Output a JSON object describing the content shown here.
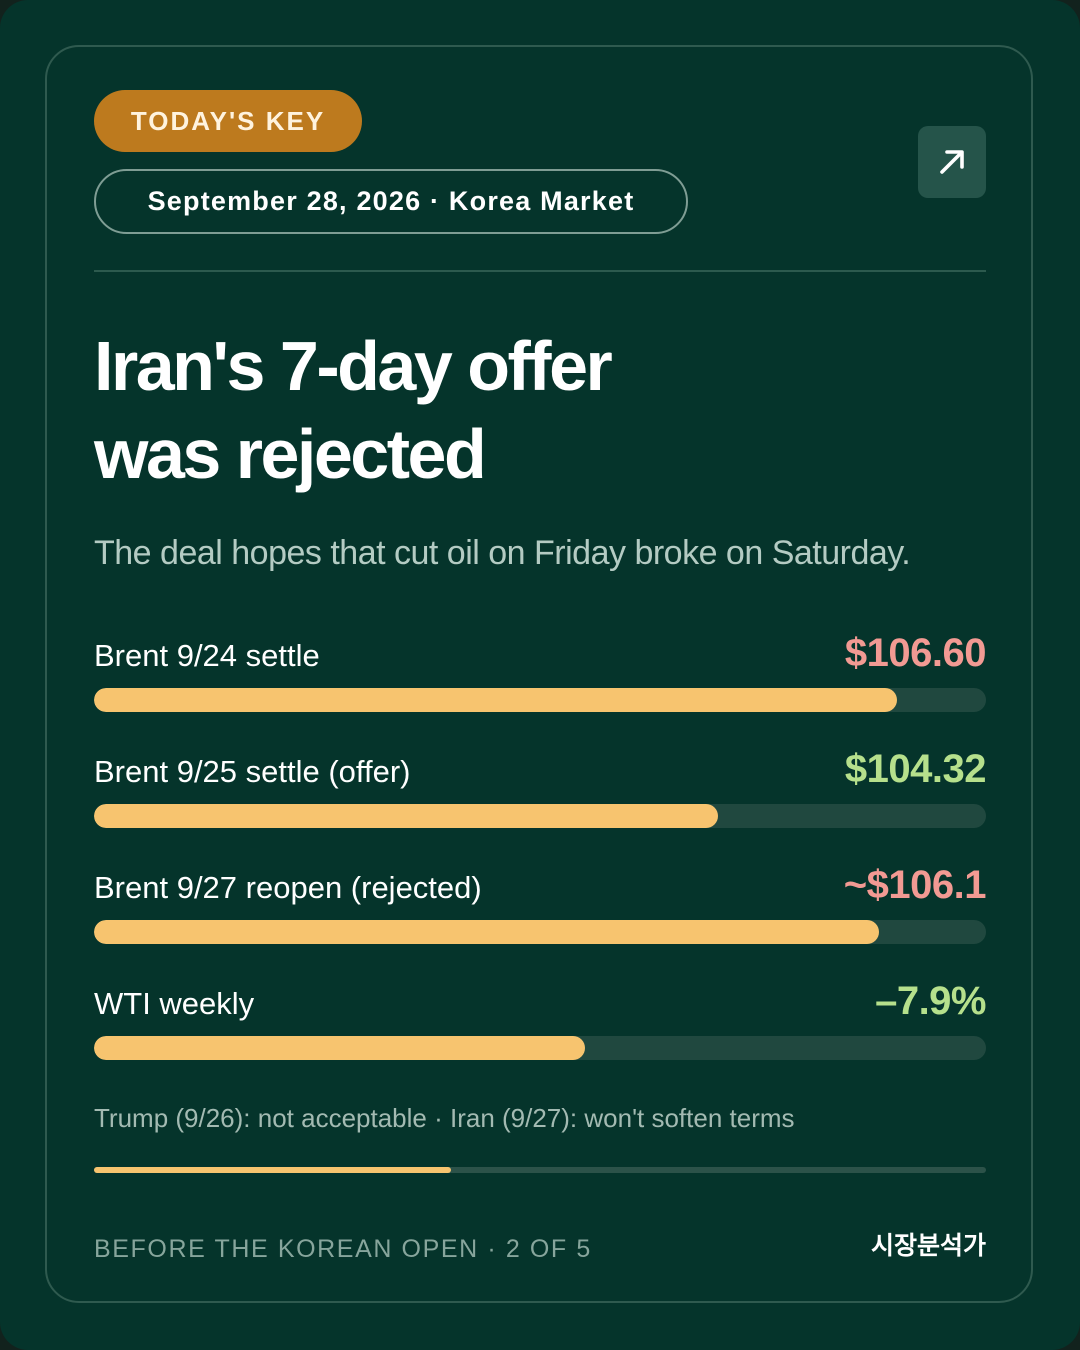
{
  "header": {
    "badge_label": "TODAY'S KEY",
    "date_context": "September 28, 2026 · Korea Market",
    "share_icon": "arrow-up-right-icon"
  },
  "headline": {
    "line1": "Iran's 7-day offer",
    "line2": "was rejected"
  },
  "subheadline": "The deal hopes that cut oil on Friday broke on Saturday.",
  "metrics": [
    {
      "label": "Brent 9/24 settle",
      "value": "$106.60",
      "color": "#f29a93",
      "fill_fraction": 0.9
    },
    {
      "label": "Brent 9/25 settle (offer)",
      "value": "$104.32",
      "color": "#b6e08c",
      "fill_fraction": 0.7
    },
    {
      "label": "Brent 9/27 reopen (rejected)",
      "value": "~$106.1",
      "color": "#f29a93",
      "fill_fraction": 0.88
    },
    {
      "label": "WTI weekly",
      "value": "–7.9%",
      "color": "#b6e08c",
      "fill_fraction": 0.55
    }
  ],
  "footnote": "Trump (9/26): not acceptable · Iran (9/27): won't soften terms",
  "pager": {
    "label": "BEFORE THE KOREAN OPEN · 2 OF 5",
    "current": 2,
    "total": 5
  },
  "brand": "시장분석가",
  "colors": {
    "background": "#05342b",
    "accent": "#bd7a1e",
    "bar_fill": "#f7c46f",
    "negative": "#f29a93",
    "positive": "#b6e08c"
  }
}
